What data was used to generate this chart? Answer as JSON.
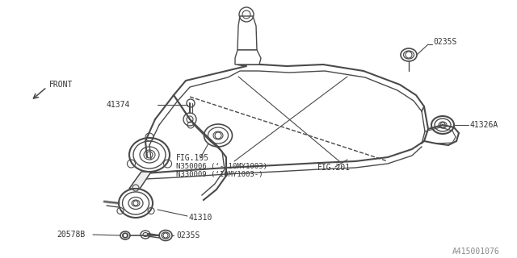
{
  "bg_color": "#ffffff",
  "line_color": "#4a4a4a",
  "text_color": "#333333",
  "title_ref": "A415001076",
  "labels": {
    "front": "FRONT",
    "fig195": "FIG.195",
    "fig201": "FIG.201",
    "n350006": "N350006 (‘-’10MY1003)",
    "n330009": "N330009 (‘10MY1003-)",
    "part41374": "41374",
    "part41326A": "41326A",
    "part0235S_top": "0235S",
    "part41310": "41310",
    "part0235S_bot": "0235S",
    "part20578B": "20578B"
  },
  "lw": 1.0,
  "figsize": [
    6.4,
    3.2
  ],
  "dpi": 100
}
